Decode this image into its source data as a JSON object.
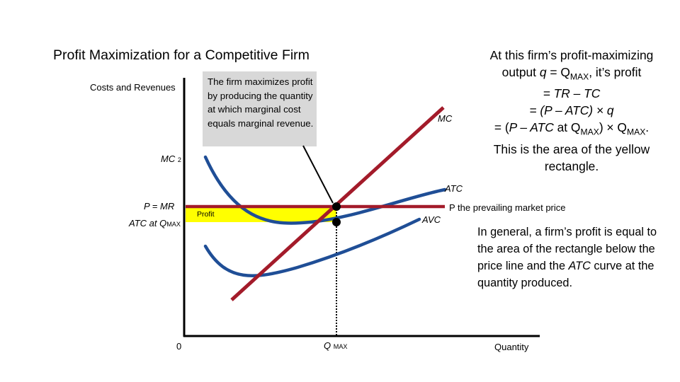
{
  "title": "Profit Maximization for a Competitive Firm",
  "axes": {
    "y_label": "Costs and Revenues",
    "x_label": "Quantity",
    "origin": "0"
  },
  "callout": {
    "text": "The firm maximizes profit by producing the quantity at which marginal cost equals marginal revenue."
  },
  "labels": {
    "mc": "MC",
    "mc2_prefix": "MC",
    "mc2_sub": "2",
    "atc": "ATC",
    "avc": "AVC",
    "p_mr": "P = MR",
    "atc_at_prefix": "ATC at Q",
    "atc_at_sub": "MAX",
    "profit": "Profit",
    "p_prevailing": "P the prevailing market price",
    "q_max_prefix": "Q",
    "q_max_sub": "MAX"
  },
  "explanation": {
    "line1": "At this firm’s profit-maximizing",
    "line2_a": "output ",
    "line2_q": "q",
    "line2_b": " = Q",
    "line2_sub": "MAX",
    "line2_c": ", it’s profit",
    "line3": "= TR – TC",
    "line4_a": "= (P – ATC) × ",
    "line4_q": "q",
    "line5_a": "= (",
    "line5_b": "P – ATC",
    "line5_c": " at Q",
    "line5_sub": "MAX",
    "line5_d": ") ×  Q",
    "line5_sub2": "MAX",
    "line5_e": ".",
    "line6": "This is the area of the yellow",
    "line7": "rectangle."
  },
  "general": {
    "a": "In general, a firm’s profit is equal to the area of the rectangle below the price line and the ",
    "atc": "ATC",
    "b": " curve at the quantity produced."
  },
  "colors": {
    "mc_line": "#a31b2a",
    "price_line": "#a31b2a",
    "curves": "#1f4e96",
    "profit_fill": "#ffff00",
    "callout_bg": "#d8d8d8"
  }
}
